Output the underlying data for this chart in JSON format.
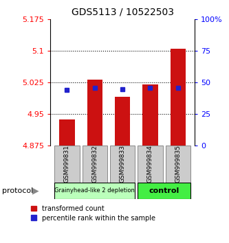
{
  "title": "GDS5113 / 10522503",
  "samples": [
    "GSM999831",
    "GSM999832",
    "GSM999833",
    "GSM999834",
    "GSM999835"
  ],
  "bar_base": 4.875,
  "bar_tops": [
    4.938,
    5.032,
    4.992,
    5.02,
    5.105
  ],
  "percentile_ranks": [
    44,
    46,
    45,
    46,
    46
  ],
  "bar_color": "#cc1111",
  "percentile_color": "#2222cc",
  "ylim_left": [
    4.875,
    5.175
  ],
  "ylim_right": [
    0,
    100
  ],
  "yticks_left": [
    4.875,
    4.95,
    5.025,
    5.1,
    5.175
  ],
  "yticks_right": [
    0,
    25,
    50,
    75,
    100
  ],
  "ytick_labels_left": [
    "4.875",
    "4.95",
    "5.025",
    "5.1",
    "5.175"
  ],
  "ytick_labels_right": [
    "0",
    "25",
    "50",
    "75",
    "100%"
  ],
  "group1_indices": [
    0,
    1,
    2
  ],
  "group2_indices": [
    3,
    4
  ],
  "group1_label": "Grainyhead-like 2 depletion",
  "group2_label": "control",
  "group1_color": "#bbffbb",
  "group2_color": "#44ee44",
  "protocol_label": "protocol",
  "legend_items": [
    "transformed count",
    "percentile rank within the sample"
  ],
  "background_color": "#ffffff",
  "sample_box_color": "#cccccc",
  "grid_lines": [
    4.95,
    5.025,
    5.1
  ]
}
